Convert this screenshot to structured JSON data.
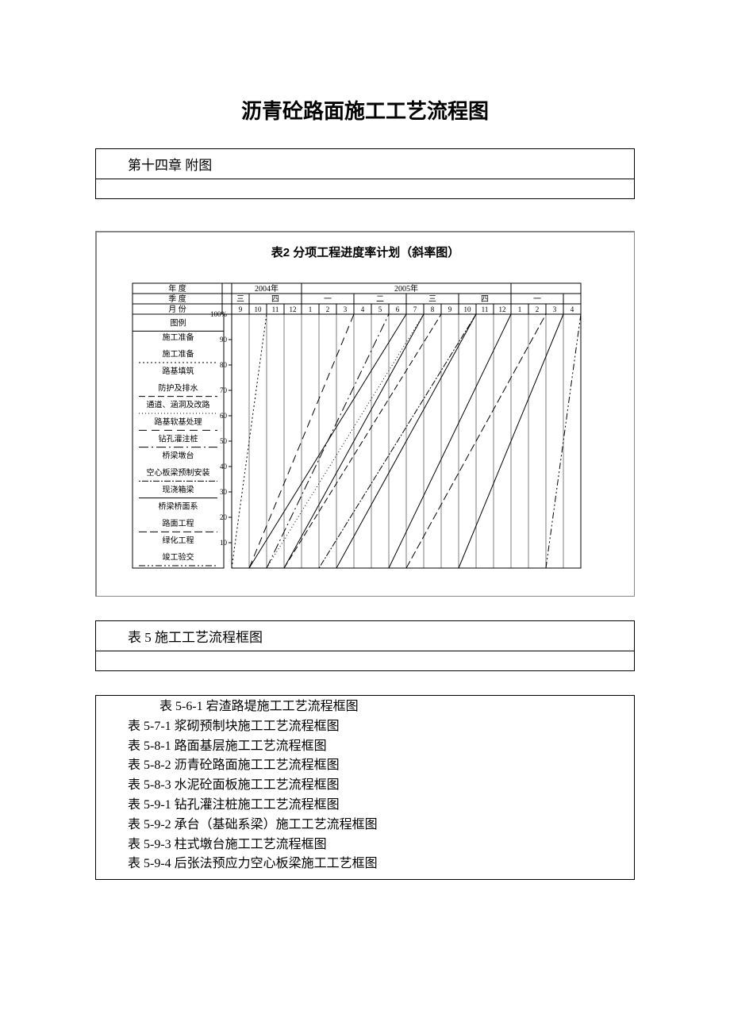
{
  "page_title": "沥青砼路面施工工艺流程图",
  "section1_header": "第十四章 附图",
  "chart": {
    "title": "表2 分项工程进度率计划（斜率图）",
    "type": "line",
    "background_color": "#ffffff",
    "grid_color": "#000000",
    "font_size_axis": 10,
    "header_rows": {
      "year_label": "年        度",
      "quarter_label": "季        度",
      "month_label": "月        份",
      "years": [
        "2004年",
        "2005年",
        ""
      ],
      "quarters_2004": [
        "三",
        "四"
      ],
      "quarters_2005": [
        "一",
        "二",
        "三",
        "四"
      ],
      "quarters_2006": [
        "一"
      ],
      "months": [
        "9",
        "10",
        "11",
        "12",
        "1",
        "2",
        "3",
        "4",
        "5",
        "6",
        "7",
        "8",
        "9",
        "10",
        "11",
        "12",
        "1",
        "2",
        "3",
        "4"
      ]
    },
    "ylim": [
      0,
      100
    ],
    "yticks": [
      10,
      20,
      30,
      40,
      50,
      60,
      70,
      80,
      90,
      100
    ],
    "ytick_suffix_100": "%",
    "legend_title": "图例",
    "legend": [
      {
        "label": "施工准备",
        "dash": "none",
        "item_border": "none"
      },
      {
        "label": "施工准备",
        "dash": "2,3",
        "item_border": "dotted"
      },
      {
        "label": "路基填筑",
        "dash": "none",
        "item_border": "none"
      },
      {
        "label": "防护及排水",
        "dash": "8,4",
        "item_border": "dashed"
      },
      {
        "label": "通道、涵洞及改路",
        "dash": "1,3",
        "item_border": "dotted-fine"
      },
      {
        "label": "路基软基处理",
        "dash": "10,6",
        "item_border": "dashed"
      },
      {
        "label": "钻孔灌注桩",
        "dash": "12,4,2,4",
        "item_border": "dashdot"
      },
      {
        "label": "桥梁墩台",
        "dash": "none",
        "item_border": "none"
      },
      {
        "label": "空心板梁预制安装",
        "dash": "2,2,8,2",
        "item_border": "mixed"
      },
      {
        "label": "现浇箱梁",
        "dash": "none",
        "item_border": "solid"
      },
      {
        "label": "桥梁桥面系",
        "dash": "none",
        "item_border": "none"
      },
      {
        "label": "路面工程",
        "dash": "10,4",
        "item_border": "dashed"
      },
      {
        "label": "绿化工程",
        "dash": "none",
        "item_border": "none"
      },
      {
        "label": "竣工验交",
        "dash": "8,3,2,3,2,3",
        "item_border": "dashdotdot"
      }
    ],
    "series": [
      {
        "name": "施工准备(点)",
        "dash": "2,3",
        "points": [
          [
            0,
            0
          ],
          [
            2,
            100
          ]
        ]
      },
      {
        "name": "路基填筑",
        "dash": "none",
        "points": [
          [
            1,
            0
          ],
          [
            10,
            100
          ]
        ]
      },
      {
        "name": "防护及排水",
        "dash": "8,4",
        "points": [
          [
            3,
            0
          ],
          [
            12,
            100
          ]
        ]
      },
      {
        "name": "涵洞",
        "dash": "1,3",
        "points": [
          [
            2,
            0
          ],
          [
            11,
            100
          ]
        ]
      },
      {
        "name": "软基",
        "dash": "10,6",
        "points": [
          [
            1,
            0
          ],
          [
            7,
            100
          ]
        ]
      },
      {
        "name": "钻孔桩",
        "dash": "12,4,2,4",
        "points": [
          [
            2,
            0
          ],
          [
            9,
            100
          ]
        ]
      },
      {
        "name": "墩台",
        "dash": "none",
        "points": [
          [
            3,
            0
          ],
          [
            11,
            100
          ]
        ]
      },
      {
        "name": "空心板",
        "dash": "2,2,8,2",
        "points": [
          [
            5,
            0
          ],
          [
            14,
            100
          ]
        ]
      },
      {
        "name": "现浇箱梁",
        "dash": "none",
        "points": [
          [
            6,
            0
          ],
          [
            14,
            100
          ]
        ]
      },
      {
        "name": "桥面系",
        "dash": "none",
        "points": [
          [
            9,
            0
          ],
          [
            16,
            100
          ]
        ]
      },
      {
        "name": "路面",
        "dash": "10,4",
        "points": [
          [
            10,
            0
          ],
          [
            18,
            100
          ]
        ]
      },
      {
        "name": "绿化",
        "dash": "none",
        "points": [
          [
            13,
            0
          ],
          [
            19,
            100
          ]
        ]
      },
      {
        "name": "竣工",
        "dash": "8,3,2,3,2,3",
        "points": [
          [
            18,
            0
          ],
          [
            20,
            100
          ]
        ]
      }
    ],
    "line_color": "#000000",
    "line_width": 1
  },
  "section2_header": "表 5  施工工艺流程框图",
  "list_items": [
    "表 5-6-1  宕渣路堤施工工艺流程框图",
    "表 5-7-1  浆砌预制块施工工艺流程框图",
    "表 5-8-1  路面基层施工工艺流程框图",
    "表 5-8-2  沥青砼路面施工工艺流程框图",
    "表 5-8-3  水泥砼面板施工工艺流程框图",
    "表 5-9-1  钻孔灌注桩施工工艺流程框图",
    "表 5-9-2  承台（基础系梁）施工工艺流程框图",
    "表 5-9-3  柱式墩台施工工艺流程框图",
    "表 5-9-4  后张法预应力空心板梁施工工艺框图"
  ]
}
